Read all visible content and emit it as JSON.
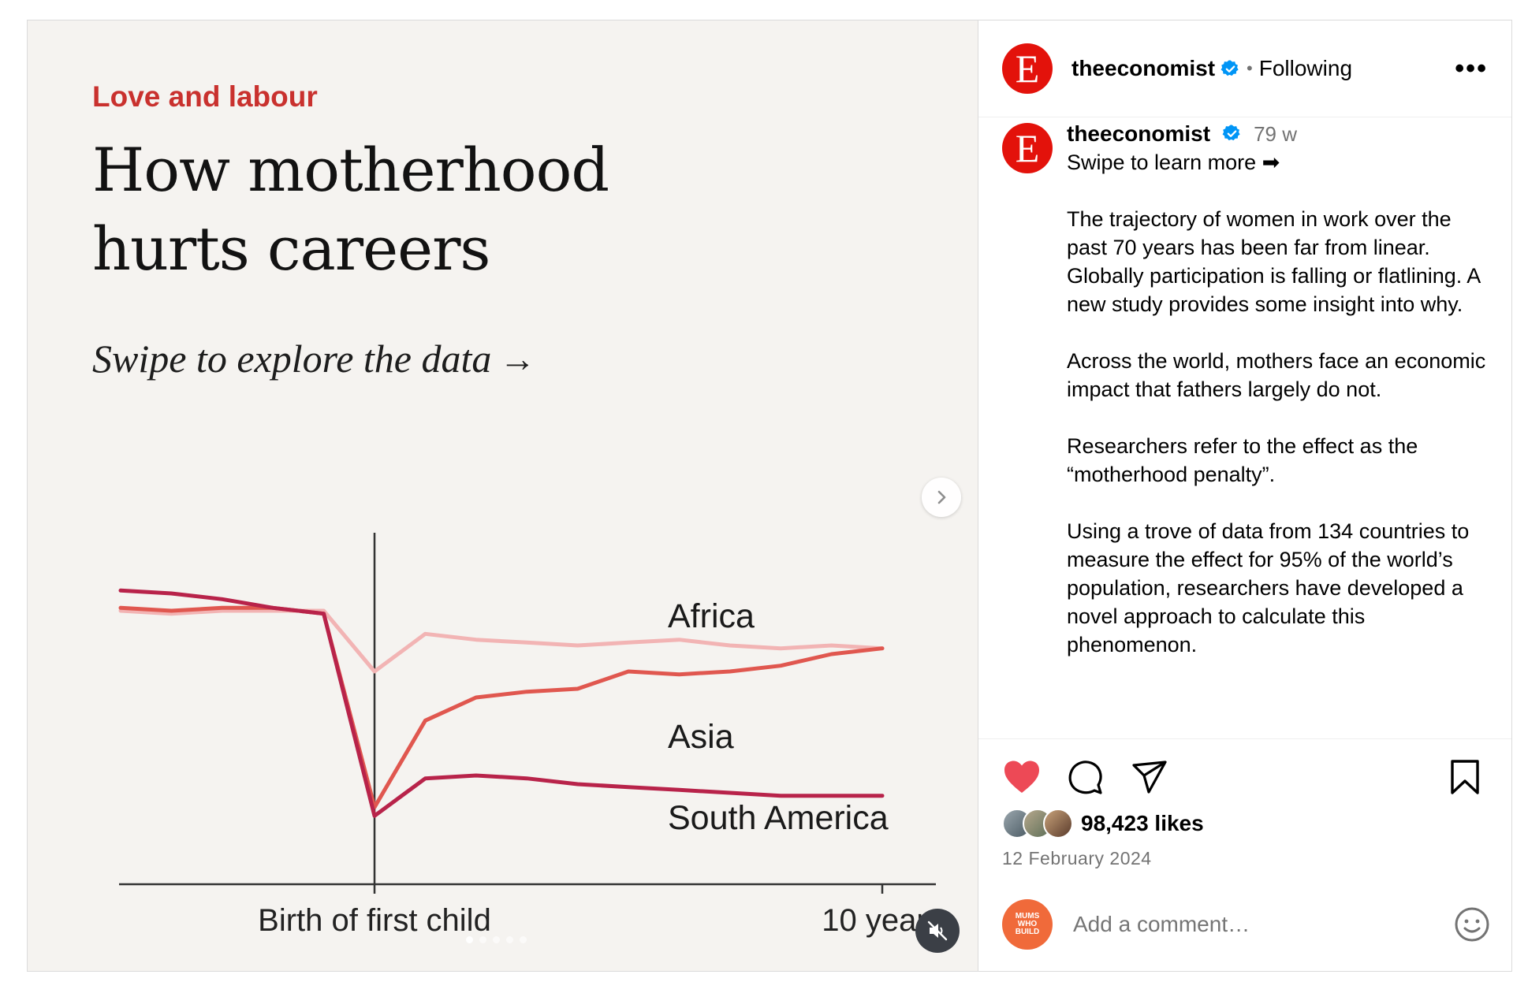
{
  "media": {
    "kicker": "Love and labour",
    "headline_line1": "How motherhood",
    "headline_line2": "hurts careers",
    "subline": "Swipe to explore the data",
    "subline_arrow": "→"
  },
  "chart_data": {
    "type": "line",
    "title": "How motherhood hurts careers",
    "x_labels": [
      "Birth of first child",
      "10 years"
    ],
    "x": [
      -5,
      -4,
      -3,
      -2,
      -1,
      0,
      1,
      2,
      3,
      4,
      5,
      6,
      7,
      8,
      9,
      10
    ],
    "series": [
      {
        "name": "Africa",
        "color": "#f2b4b4",
        "values": [
          93,
          92,
          93,
          93,
          93,
          72,
          85,
          83,
          82,
          81,
          82,
          83,
          81,
          80,
          81,
          80
        ]
      },
      {
        "name": "Asia",
        "color": "#e0574f",
        "values": [
          94,
          93,
          94,
          94,
          92,
          25,
          55,
          63,
          65,
          66,
          72,
          71,
          72,
          74,
          78,
          80
        ]
      },
      {
        "name": "South America",
        "color": "#b8234a",
        "values": [
          100,
          99,
          97,
          94,
          92,
          22,
          35,
          36,
          35,
          33,
          32,
          31,
          30,
          29,
          29,
          29
        ]
      }
    ],
    "ylim": [
      0,
      105
    ],
    "xlim": [
      -5,
      11
    ]
  },
  "header": {
    "username": "theeconomist",
    "separator": "•",
    "follow_status": "Following",
    "more_label": "•••",
    "logo_letter": "E"
  },
  "caption": {
    "username": "theeconomist",
    "time": "79 w",
    "first_line": "Swipe to learn more ➡",
    "paragraphs": [
      "The trajectory of women in work over the past 70 years has been far from linear. Globally participation is falling or flatlining. A new study provides some insight into why.",
      "Across the world, mothers face an economic impact that fathers largely do not.",
      "Researchers refer to the effect as the “motherhood penalty”.",
      "Using a trove of data from 134 countries to measure the effect for 95% of the world’s population, researchers have developed a novel approach to calculate this phenomenon."
    ]
  },
  "engagement": {
    "likes": "98,423 likes",
    "date": "12 February 2024",
    "liked": true
  },
  "comment": {
    "placeholder": "Add a comment…",
    "avatar_lines": [
      "MUMS",
      "WHO",
      "BUILD"
    ]
  },
  "colors": {
    "heart": "#ed4956",
    "economist_red": "#e3120b",
    "kicker_red": "#c9312e",
    "verified_blue": "#0095f6"
  }
}
